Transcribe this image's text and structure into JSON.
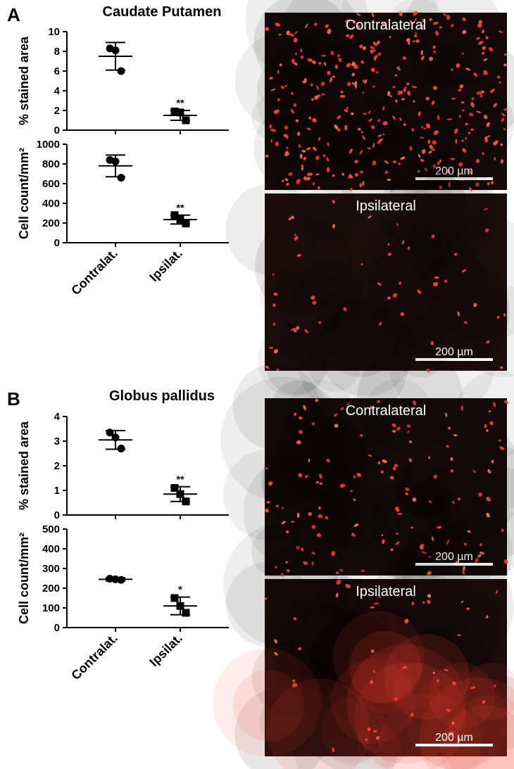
{
  "labels": {
    "A": "A",
    "B": "B",
    "titleA": "Caudate Putamen",
    "titleB": "Globus pallidus",
    "contralat": "Contralat.",
    "ipsilat": "Ipsilat.",
    "contralateral": "Contralateral",
    "ipsilateral": "Ipsilateral",
    "scale": "200 µm",
    "pct_stained": "% stained area",
    "cell_count": "Cell count/mm²",
    "sig2": "**",
    "sig1": "*"
  },
  "colors": {
    "bg_dark": "#1a0b0b",
    "bg_dark2": "#2a1212",
    "cell": "#ff4030",
    "cell_bright": "#ff6a50",
    "axis": "#000000"
  },
  "A": {
    "chart1": {
      "ylabel": "% stained area",
      "ylim": [
        0,
        10
      ],
      "ytick_step": 2,
      "groups": [
        {
          "name": "Contralat.",
          "mean": 7.5,
          "err": 1.4,
          "points": [
            8.3,
            8.1,
            6.0
          ],
          "marker": "circle"
        },
        {
          "name": "Ipsilat.",
          "mean": 1.5,
          "err": 0.5,
          "points": [
            1.9,
            1.8,
            1.0
          ],
          "marker": "square",
          "sig": "**"
        }
      ],
      "cap_w": 28,
      "mean_w": 48,
      "marker_r": 5
    },
    "chart2": {
      "ylabel": "Cell count/mm²",
      "ylim": [
        0,
        1000
      ],
      "ytick_step": 200,
      "groups": [
        {
          "name": "Contralat.",
          "mean": 780,
          "err": 110,
          "points": [
            840,
            825,
            660
          ],
          "marker": "circle"
        },
        {
          "name": "Ipsilat.",
          "mean": 235,
          "err": 45,
          "points": [
            280,
            235,
            195
          ],
          "marker": "square",
          "sig": "**"
        }
      ],
      "cap_w": 28,
      "mean_w": 48,
      "marker_r": 5,
      "xlabels": [
        "Contralat.",
        "Ipsilat."
      ]
    }
  },
  "B": {
    "chart1": {
      "ylabel": "% stained area",
      "ylim": [
        0,
        4
      ],
      "ytick_step": 1,
      "groups": [
        {
          "name": "Contralat.",
          "mean": 3.05,
          "err": 0.38,
          "points": [
            3.35,
            3.15,
            2.7
          ],
          "marker": "circle"
        },
        {
          "name": "Ipsilat.",
          "mean": 0.85,
          "err": 0.3,
          "points": [
            1.1,
            0.85,
            0.55
          ],
          "marker": "square",
          "sig": "**"
        }
      ],
      "cap_w": 28,
      "mean_w": 48,
      "marker_r": 5
    },
    "chart2": {
      "ylabel": "Cell count/mm²",
      "ylim": [
        0,
        500
      ],
      "ytick_step": 100,
      "groups": [
        {
          "name": "Contralat.",
          "mean": 245,
          "err": 8,
          "points": [
            248,
            245,
            242
          ],
          "marker": "circle"
        },
        {
          "name": "Ipsilat.",
          "mean": 110,
          "err": 45,
          "points": [
            150,
            110,
            75
          ],
          "marker": "square",
          "sig": "*"
        }
      ],
      "cap_w": 28,
      "mean_w": 48,
      "marker_r": 5,
      "xlabels": [
        "Contralat.",
        "Ipsilat."
      ]
    }
  },
  "layout": {
    "chart_left": 95,
    "chart_plot_w": 230,
    "chart_plot_h": 140,
    "micro_x": 376,
    "micro_w": 344,
    "micro_h": 252,
    "group_x": [
      0.3,
      0.7
    ]
  },
  "micrographs": {
    "A_contra": {
      "density": 320,
      "bg": "#160a0a"
    },
    "A_ipsi": {
      "density": 55,
      "bg": "#1d0e0d"
    },
    "B_contra": {
      "density": 130,
      "bg": "#170b0b"
    },
    "B_ipsi": {
      "density": 45,
      "bg": "#1a0c0b",
      "haze": true
    }
  }
}
